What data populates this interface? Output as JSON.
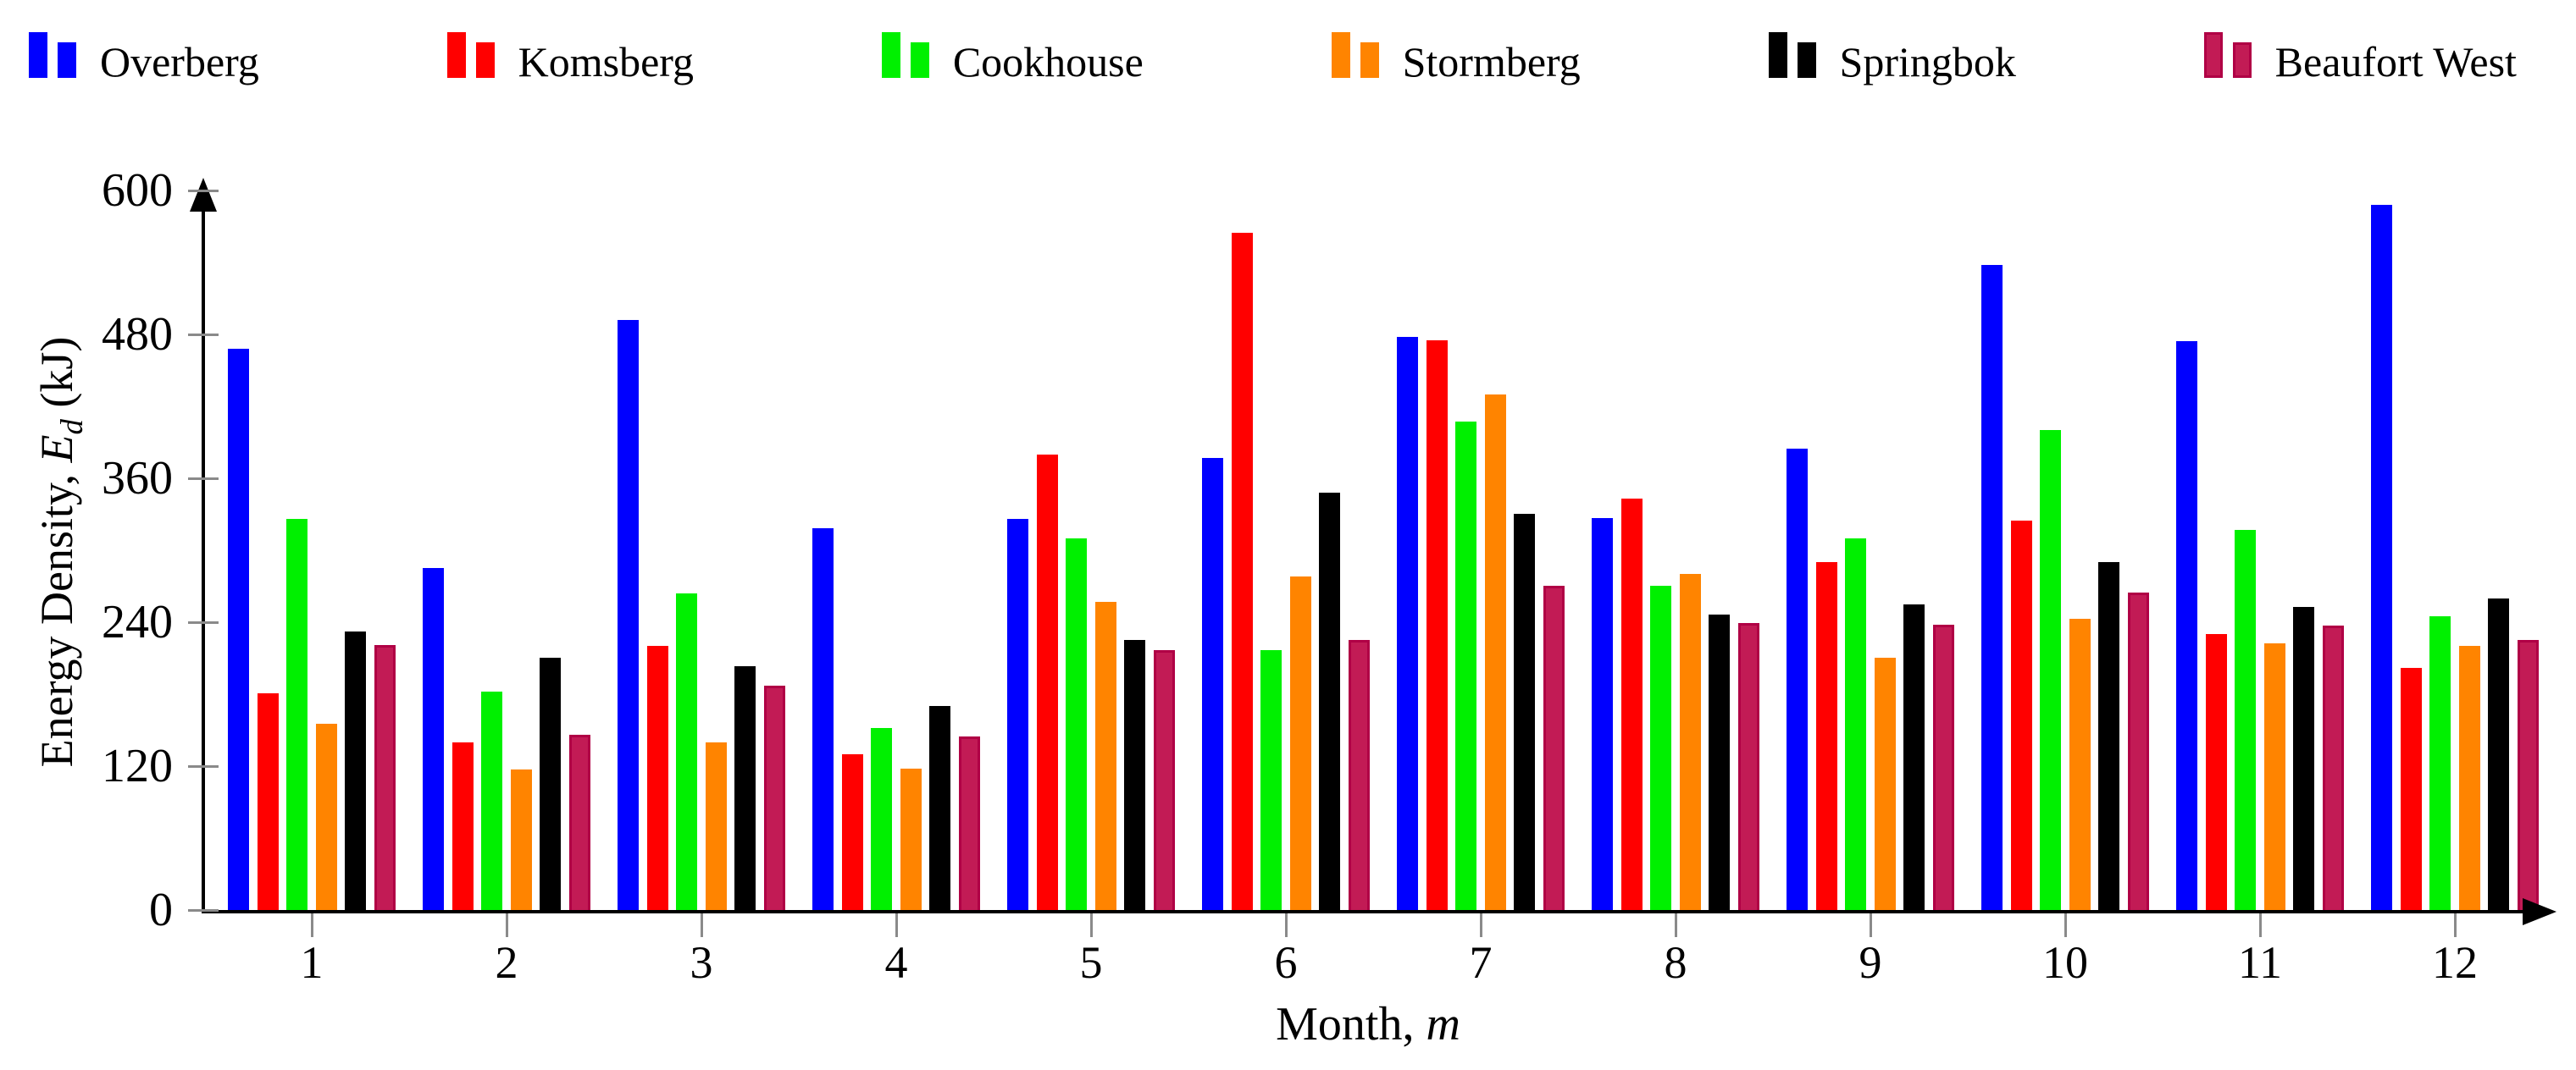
{
  "page": {
    "background": "#ffffff"
  },
  "axes": {
    "ylabel": {
      "prefix": "Energy Density, ",
      "var": "E",
      "sub": "d",
      "suffix": " (kJ)"
    },
    "xlabel": {
      "prefix": "Month, ",
      "var": "m"
    }
  },
  "chart_data": {
    "type": "bar",
    "title": "",
    "xlabel": "Month, m",
    "ylabel": "Energy Density, E_d (kJ)",
    "categories": [
      1,
      2,
      3,
      4,
      5,
      6,
      7,
      8,
      9,
      10,
      11,
      12
    ],
    "ylim": [
      0,
      600
    ],
    "yticks": [
      0,
      120,
      240,
      360,
      480,
      600
    ],
    "grid": false,
    "legend_position": "top",
    "axis_color": "#000000",
    "tick_color": "#8a8a8a",
    "series": [
      {
        "name": "Overberg",
        "color": "#0000FF",
        "values": [
          468,
          285,
          492,
          318,
          326,
          377,
          478,
          327,
          385,
          538,
          474,
          588
        ]
      },
      {
        "name": "Komsberg",
        "color": "#FF0000",
        "values": [
          181,
          140,
          220,
          130,
          380,
          565,
          475,
          343,
          290,
          325,
          230,
          202
        ]
      },
      {
        "name": "Cookhouse",
        "color": "#00F000",
        "values": [
          326,
          182,
          264,
          152,
          310,
          217,
          407,
          270,
          310,
          400,
          317,
          245
        ]
      },
      {
        "name": "Stormberg",
        "color": "#FF8400",
        "values": [
          155,
          117,
          140,
          118,
          257,
          278,
          430,
          280,
          210,
          243,
          222,
          220
        ]
      },
      {
        "name": "Springbok",
        "color": "#000000",
        "values": [
          232,
          210,
          203,
          170,
          225,
          348,
          330,
          246,
          255,
          290,
          253,
          260
        ]
      },
      {
        "name": "Beaufort West",
        "color": "#C21B55",
        "border": "#B00045",
        "values": [
          221,
          146,
          187,
          145,
          217,
          225,
          270,
          239,
          238,
          265,
          237,
          225
        ]
      }
    ]
  }
}
